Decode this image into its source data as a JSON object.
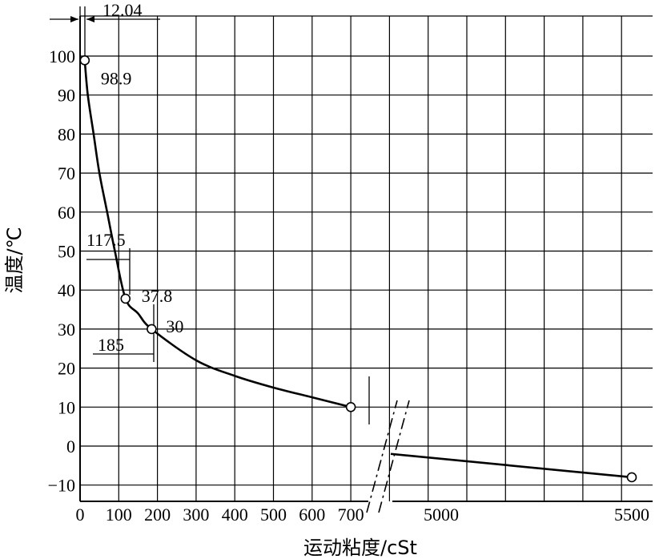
{
  "chart_data": {
    "type": "line",
    "title": "",
    "xlabel": "运动粘度/cSt",
    "ylabel": "温度/℃",
    "x_ticks_left": [
      "0",
      "100",
      "200",
      "300",
      "400",
      "500",
      "600",
      "700"
    ],
    "x_ticks_right": [
      "5000",
      "5500"
    ],
    "y_ticks": [
      "100",
      "90",
      "80",
      "70",
      "60",
      "50",
      "40",
      "30",
      "20",
      "10",
      "0",
      "−10"
    ],
    "ylim": [
      -10,
      100
    ],
    "xlim_left": [
      0,
      700
    ],
    "xlim_right": [
      4800,
      5500
    ],
    "axis_break": true,
    "grid": true,
    "series_left": [
      {
        "x": 12.04,
        "y": 98.9
      },
      {
        "x": 20,
        "y": 90
      },
      {
        "x": 35,
        "y": 80
      },
      {
        "x": 50,
        "y": 70
      },
      {
        "x": 70,
        "y": 60
      },
      {
        "x": 90,
        "y": 50
      },
      {
        "x": 117.5,
        "y": 37.8
      },
      {
        "x": 150,
        "y": 34
      },
      {
        "x": 185,
        "y": 30
      },
      {
        "x": 300,
        "y": 22
      },
      {
        "x": 400,
        "y": 18
      },
      {
        "x": 500,
        "y": 15
      },
      {
        "x": 600,
        "y": 12.5
      },
      {
        "x": 700,
        "y": 10
      }
    ],
    "series_right": [
      {
        "x": 4880,
        "y": -2
      },
      {
        "x": 5500,
        "y": -8
      }
    ],
    "markers": [
      {
        "x": 12.04,
        "y": 98.9,
        "label": "98.9"
      },
      {
        "x": 117.5,
        "y": 37.8,
        "label": "37.8"
      },
      {
        "x": 185,
        "y": 30,
        "label": "30"
      },
      {
        "x": 700,
        "y": 10
      },
      {
        "x": 5500,
        "y": -8
      }
    ],
    "annotations": {
      "a1": "12.04",
      "a2": "117.5",
      "a3": "185"
    }
  }
}
